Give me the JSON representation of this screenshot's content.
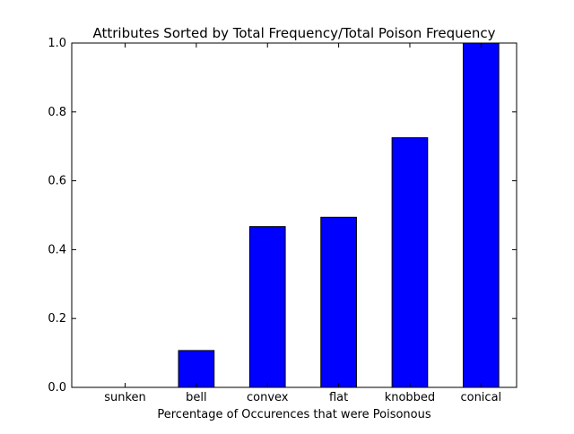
{
  "chart_data": {
    "type": "bar",
    "title": "Attributes Sorted by Total Frequency/Total Poison Frequency",
    "xlabel": "Percentage of Occurences that were Poisonous",
    "ylabel": "",
    "categories": [
      "sunken",
      "bell",
      "convex",
      "flat",
      "knobbed",
      "conical"
    ],
    "values": [
      0.0,
      0.107,
      0.467,
      0.494,
      0.725,
      1.0
    ],
    "ylim": [
      0,
      1.0
    ],
    "yticks": [
      "0.0",
      "0.2",
      "0.4",
      "0.6",
      "0.8",
      "1.0"
    ],
    "grid": false,
    "bar_color": "#0000ff"
  }
}
